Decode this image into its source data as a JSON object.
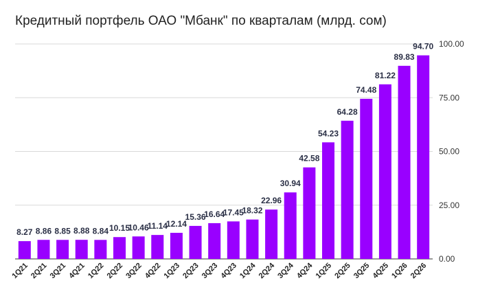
{
  "chart_data": {
    "type": "bar",
    "title": "Кредитный портфель ОАО \"Мбанк\" по кварталам (млрд. сом)",
    "categories": [
      "1Q21",
      "2Q21",
      "3Q21",
      "4Q21",
      "1Q22",
      "2Q22",
      "3Q22",
      "4Q22",
      "1Q23",
      "2Q23",
      "3Q23",
      "4Q23",
      "1Q24",
      "2Q24",
      "3Q24",
      "4Q24",
      "1Q25",
      "2Q25",
      "3Q25",
      "4Q25",
      "1Q26",
      "2Q26"
    ],
    "values": [
      8.27,
      8.86,
      8.85,
      8.88,
      8.84,
      10.15,
      10.46,
      11.14,
      12.14,
      15.36,
      16.64,
      17.45,
      18.32,
      22.96,
      30.94,
      42.58,
      54.23,
      64.28,
      74.48,
      81.22,
      89.83,
      94.7
    ],
    "data_labels": [
      "8.27",
      "8.86",
      "8.85",
      "8.88",
      "8.84",
      "10.15",
      "10.46",
      "11.14",
      "12.14",
      "15.36",
      "16.64",
      "17.45",
      "18.32",
      "22.96",
      "30.94",
      "42.58",
      "54.23",
      "64.28",
      "74.48",
      "81.22",
      "89.83",
      "94.70"
    ],
    "ylim": [
      0,
      100
    ],
    "yticks": [
      "0.00",
      "25.00",
      "50.00",
      "75.00",
      "100.00"
    ],
    "ytick_values": [
      0,
      25,
      50,
      75,
      100
    ],
    "y_axis_side": "right",
    "grid": true,
    "bar_color": "#9900ff",
    "xlabel": "",
    "ylabel": ""
  }
}
